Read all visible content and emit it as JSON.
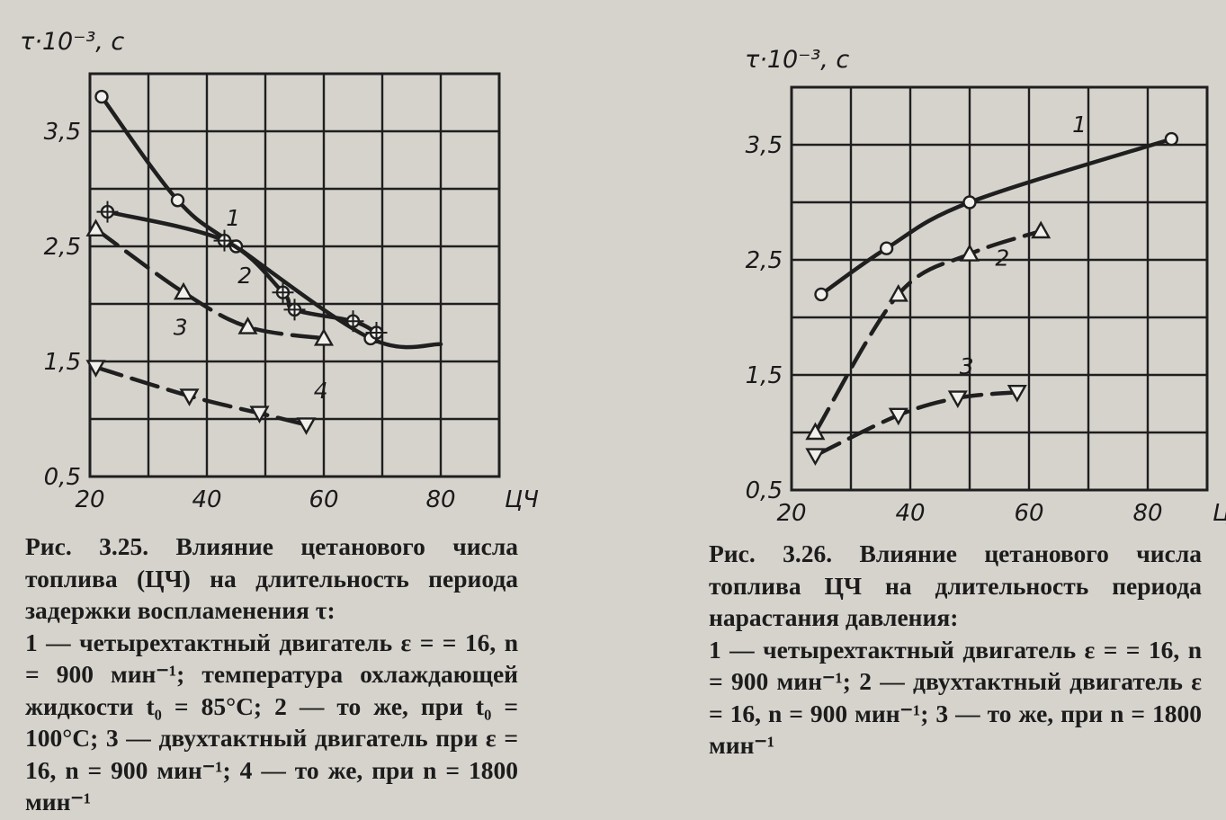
{
  "chart_data": [
    {
      "type": "line",
      "y_title": "τ·10⁻³, с",
      "x_unit_label": "ЦЧ",
      "x_ticks": [
        "20",
        "40",
        "60",
        "80"
      ],
      "y_ticks": [
        "0,5",
        "1,5",
        "2,5",
        "3,5"
      ],
      "xlim": [
        20,
        90
      ],
      "ylim": [
        0.5,
        4.0
      ],
      "grid": true,
      "series": [
        {
          "name": "1",
          "marker": "circle",
          "x": [
            22,
            35,
            45,
            68
          ],
          "y": [
            3.8,
            2.9,
            2.5,
            1.7
          ],
          "curve_end": [
            80,
            1.65
          ]
        },
        {
          "name": "2",
          "marker": "crossed-circle",
          "x": [
            23,
            43,
            53,
            55,
            65,
            69
          ],
          "y": [
            2.8,
            2.55,
            2.1,
            1.95,
            1.85,
            1.75
          ]
        },
        {
          "name": "3",
          "marker": "triangle-up",
          "x": [
            21,
            36,
            47,
            60
          ],
          "y": [
            2.65,
            2.1,
            1.8,
            1.7
          ]
        },
        {
          "name": "4",
          "marker": "triangle-down",
          "x": [
            21,
            37,
            49,
            57
          ],
          "y": [
            1.45,
            1.2,
            1.05,
            0.95
          ]
        }
      ],
      "curve_labels": [
        {
          "text": "1",
          "x": 44.5,
          "y": 2.75
        },
        {
          "text": "2",
          "x": 46.5,
          "y": 2.25
        },
        {
          "text": "3",
          "x": 35.5,
          "y": 1.8
        },
        {
          "text": "4",
          "x": 59.5,
          "y": 1.25
        }
      ]
    },
    {
      "type": "line",
      "y_title": "τ·10⁻³, с",
      "x_unit_label": "ЦЧ",
      "x_ticks": [
        "20",
        "40",
        "60",
        "80"
      ],
      "y_ticks": [
        "0,5",
        "1,5",
        "2,5",
        "3,5"
      ],
      "xlim": [
        20,
        90
      ],
      "ylim": [
        0.5,
        4.0
      ],
      "grid": true,
      "series": [
        {
          "name": "1",
          "marker": "circle",
          "x": [
            25,
            36,
            50,
            84
          ],
          "y": [
            2.2,
            2.6,
            3.0,
            3.55
          ]
        },
        {
          "name": "2",
          "marker": "triangle-up",
          "x": [
            24,
            38,
            50,
            62
          ],
          "y": [
            1.0,
            2.2,
            2.55,
            2.75
          ]
        },
        {
          "name": "3",
          "marker": "triangle-down",
          "x": [
            24,
            38,
            48,
            58
          ],
          "y": [
            0.8,
            1.15,
            1.3,
            1.35
          ]
        }
      ],
      "curve_labels": [
        {
          "text": "1",
          "x": 68.5,
          "y": 3.68
        },
        {
          "text": "2",
          "x": 55.5,
          "y": 2.52
        },
        {
          "text": "3",
          "x": 49.5,
          "y": 1.58
        }
      ]
    }
  ],
  "captions": {
    "left": {
      "title": "Рис. 3.25. Влияние цетанового числа топлива (ЦЧ) на длительность периода задержки воспламенения τ:",
      "body": "1 — четырехтактный двигатель ε = = 16, n = 900 мин⁻¹; температура охлаждающей жидкости t₀ = 85°С; 2 — то же, при t₀ = 100°С; 3 — двухтактный двигатель при ε = 16, n = 900 мин⁻¹; 4 — то же, при n = 1800 мин⁻¹"
    },
    "right": {
      "title": "Рис. 3.26. Влияние цетанового числа топлива ЦЧ на длительность периода нарастания давления:",
      "body": "1 — четырехтактный двигатель ε = = 16, n = 900 мин⁻¹; 2 — двухтактный двигатель ε = 16, n = 900 мин⁻¹; 3 — то же, при n = 1800 мин⁻¹"
    }
  }
}
